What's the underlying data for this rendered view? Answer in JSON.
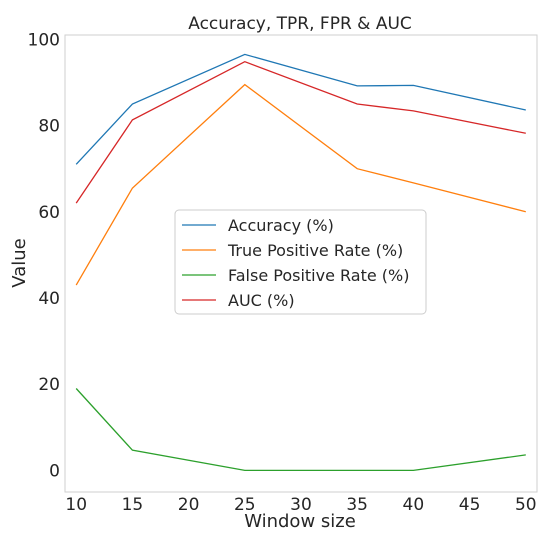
{
  "chart_data": {
    "type": "line",
    "title": "Accuracy, TPR, FPR & AUC",
    "xlabel": "Window size",
    "ylabel": "Value",
    "xlim": [
      9,
      51
    ],
    "ylim": [
      -5,
      101
    ],
    "xticks": [
      10,
      15,
      20,
      25,
      30,
      35,
      40,
      45,
      50
    ],
    "yticks": [
      0,
      20,
      40,
      60,
      80,
      100
    ],
    "grid": false,
    "legend_position": "center",
    "x": [
      10,
      15,
      25,
      35,
      40,
      50
    ],
    "series": [
      {
        "name": "Accuracy (%)",
        "color": "#1f77b4",
        "values": [
          71,
          85,
          96.5,
          89.2,
          89.3,
          83.6
        ]
      },
      {
        "name": "True Positive Rate (%)",
        "color": "#ff7f0e",
        "values": [
          43,
          65.5,
          89.5,
          70,
          66.7,
          60
        ]
      },
      {
        "name": "False Positive Rate (%)",
        "color": "#2ca02c",
        "values": [
          19,
          4.7,
          0,
          0,
          0,
          3.6
        ]
      },
      {
        "name": "AUC (%)",
        "color": "#d62728",
        "values": [
          62,
          81.3,
          94.8,
          85,
          83.4,
          78.2
        ]
      }
    ]
  }
}
